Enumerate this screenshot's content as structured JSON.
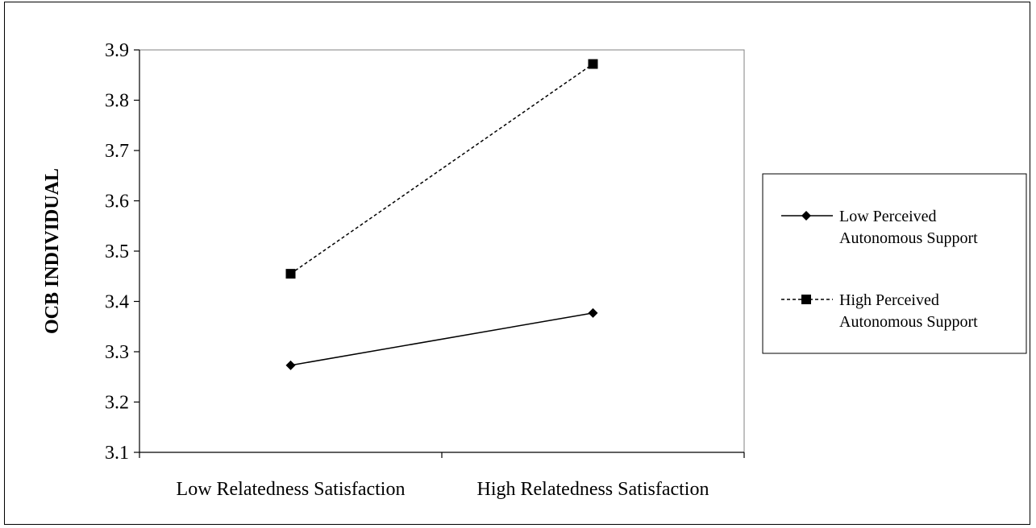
{
  "chart_data": {
    "type": "line",
    "title": "",
    "xlabel": "",
    "ylabel": "OCB INDIVIDUAL",
    "categories": [
      "Low Relatedness Satisfaction",
      "High Relatedness Satisfaction"
    ],
    "ylim": [
      3.1,
      3.9
    ],
    "yticks": [
      "3.1",
      "3.2",
      "3.3",
      "3.4",
      "3.5",
      "3.6",
      "3.7",
      "3.8",
      "3.9"
    ],
    "grid": false,
    "legend_position": "right",
    "series": [
      {
        "name_lines": [
          "Low Perceived",
          "Autonomous Support"
        ],
        "values": [
          3.273,
          3.377
        ],
        "marker": "diamond",
        "line_style": "solid",
        "color": "#000000"
      },
      {
        "name_lines": [
          "High Perceived",
          "Autonomous Support"
        ],
        "values": [
          3.455,
          3.872
        ],
        "marker": "square",
        "line_style": "dashed",
        "color": "#000000"
      }
    ]
  }
}
